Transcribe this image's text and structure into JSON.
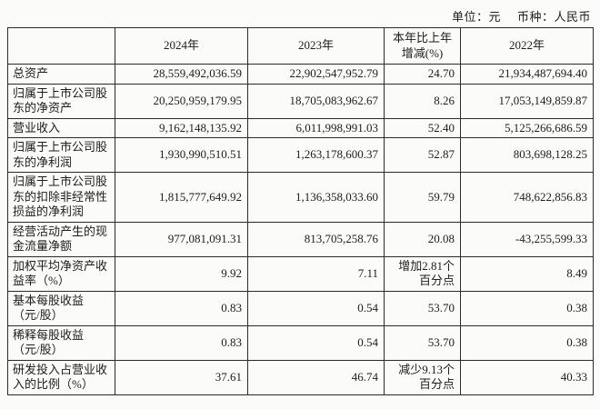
{
  "meta": {
    "unit_label": "单位：元",
    "currency_label": "币种：人民币"
  },
  "table": {
    "columns": [
      "",
      "2024年",
      "2023年",
      "本年比上年增减(%)",
      "2022年"
    ],
    "rows": [
      [
        "总资产",
        "28,559,492,036.59",
        "22,902,547,952.79",
        "24.70",
        "21,934,487,694.40"
      ],
      [
        "归属于上市公司股东的净资产",
        "20,250,959,179.95",
        "18,705,083,962.67",
        "8.26",
        "17,053,149,859.87"
      ],
      [
        "营业收入",
        "9,162,148,135.92",
        "6,011,998,991.03",
        "52.40",
        "5,125,266,686.59"
      ],
      [
        "归属于上市公司股东的净利润",
        "1,930,990,510.51",
        "1,263,178,600.37",
        "52.87",
        "803,698,128.25"
      ],
      [
        "归属于上市公司股东的扣除非经常性损益的净利润",
        "1,815,777,649.92",
        "1,136,358,033.60",
        "59.79",
        "748,622,856.83"
      ],
      [
        "经营活动产生的现金流量净额",
        "977,081,091.31",
        "813,705,258.76",
        "20.08",
        "-43,255,599.33"
      ],
      [
        "加权平均净资产收益率（%）",
        "9.92",
        "7.11",
        "增加2.81个百分点",
        "8.49"
      ],
      [
        "基本每股收益（元/股）",
        "0.83",
        "0.54",
        "53.70",
        "0.38"
      ],
      [
        "稀释每股收益（元/股）",
        "0.83",
        "0.54",
        "53.70",
        "0.38"
      ],
      [
        "研发投入占营业收入的比例（%）",
        "37.61",
        "46.74",
        "减少9.13个百分点",
        "40.33"
      ]
    ]
  }
}
